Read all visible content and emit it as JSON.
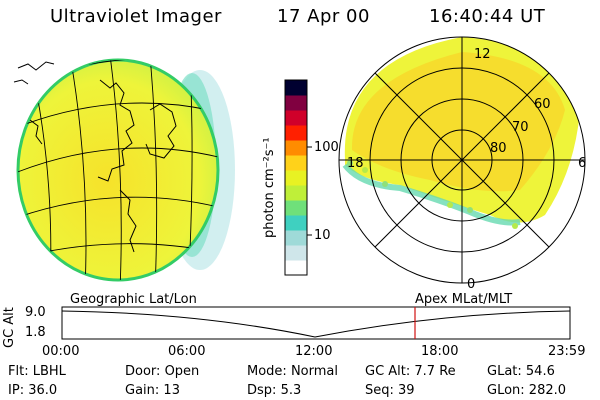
{
  "header": {
    "title": "Ultraviolet Imager",
    "date": "17 Apr 00",
    "time": "16:40:44 UT"
  },
  "colorbar": {
    "unit_label": "photon cm⁻²s⁻¹",
    "ticks": [
      "100",
      "10"
    ],
    "colors": [
      "#ffffff",
      "#cfe6ea",
      "#9fdad8",
      "#3fd0c0",
      "#6fe07a",
      "#bfef39",
      "#e8f223",
      "#ffd21a",
      "#ff8c00",
      "#ff2000",
      "#d0002a",
      "#800040",
      "#000030"
    ]
  },
  "polar_plot": {
    "lat_labels": [
      "60",
      "70",
      "80"
    ],
    "mlt_labels": {
      "top": "12",
      "left": "18",
      "right": "6",
      "bottom": "0"
    }
  },
  "timeline": {
    "left_label": "Geographic Lat/Lon",
    "right_label": "Apex MLat/MLT",
    "y_axis_title": "GC Alt",
    "y_ticks": [
      "9.0",
      "1.8"
    ],
    "x_ticks": [
      "00:00",
      "06:00",
      "12:00",
      "18:00",
      "23:59"
    ],
    "marker_time": "16:40:44",
    "marker_color": "#d01010"
  },
  "status": {
    "row1": [
      {
        "name": "Flt",
        "value": "LBHL"
      },
      {
        "name": "Door",
        "value": "Open"
      },
      {
        "name": "Mode",
        "value": "Normal"
      },
      {
        "name": "GC Alt",
        "value": "7.7 Re"
      },
      {
        "name": "GLat",
        "value": "54.6"
      }
    ],
    "row2": [
      {
        "name": "IP",
        "value": "36.0"
      },
      {
        "name": "Gain",
        "value": "13"
      },
      {
        "name": "Dsp",
        "value": "5.3"
      },
      {
        "name": "Seq",
        "value": "39"
      },
      {
        "name": "GLon",
        "value": "282.0"
      }
    ]
  }
}
